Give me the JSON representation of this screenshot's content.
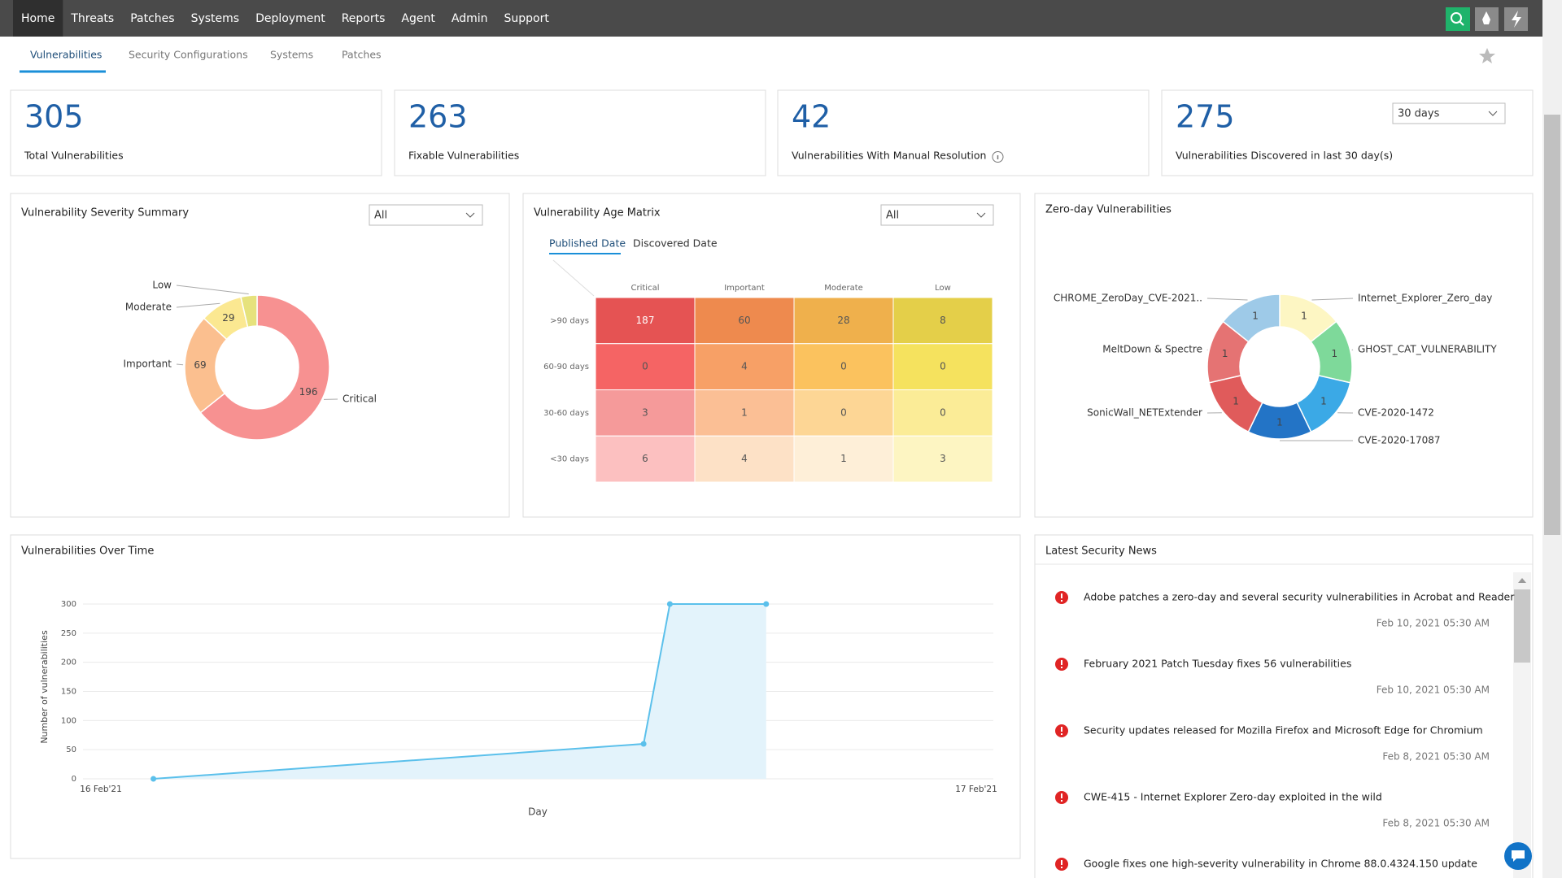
{
  "nav": {
    "items": [
      "Home",
      "Threats",
      "Patches",
      "Systems",
      "Deployment",
      "Reports",
      "Agent",
      "Admin",
      "Support"
    ]
  },
  "tabs": {
    "items": [
      "Vulnerabilities",
      "Security Configurations",
      "Systems",
      "Patches"
    ]
  },
  "stats": [
    {
      "value": 305,
      "label": "Total Vulnerabilities"
    },
    {
      "value": 263,
      "label": "Fixable Vulnerabilities"
    },
    {
      "value": 42,
      "label": "Vulnerabilities With Manual Resolution"
    },
    {
      "value": 275,
      "label": "Vulnerabilities Discovered in last 30 day(s)",
      "filter": "30 days"
    }
  ],
  "chart_data": [
    {
      "type": "donut",
      "title": "Vulnerability Severity Summary",
      "filter": "All",
      "categories": [
        "Critical",
        "Important",
        "Moderate",
        "Low"
      ],
      "values": [
        196,
        69,
        29,
        11
      ],
      "colors": [
        "#f79191",
        "#fbbf8f",
        "#fbe891",
        "#e6e27c"
      ]
    },
    {
      "type": "heatmap",
      "title": "Vulnerability Age Matrix",
      "filter": "All",
      "tabs": [
        "Published Date",
        "Discovered Date"
      ],
      "columns": [
        "Critical",
        "Important",
        "Moderate",
        "Low"
      ],
      "rows": [
        ">90 days",
        "60-90 days",
        "30-60 days",
        "<30 days"
      ],
      "values": [
        [
          187,
          60,
          28,
          8
        ],
        [
          0,
          4,
          0,
          0
        ],
        [
          3,
          1,
          0,
          0
        ],
        [
          6,
          4,
          1,
          3
        ]
      ],
      "colors": [
        [
          "#e55353",
          "#ee8a4e",
          "#efb04c",
          "#e4cf49"
        ],
        [
          "#f56464",
          "#f7a066",
          "#fbc25e",
          "#f5e25e"
        ],
        [
          "#f59a9a",
          "#fbbf95",
          "#fdd695",
          "#fbec97"
        ],
        [
          "#fcc0c0",
          "#fde1c6",
          "#feefd8",
          "#fdf5c2"
        ]
      ]
    },
    {
      "type": "donut",
      "title": "Zero-day Vulnerabilities",
      "categories": [
        "Internet_Explorer_Zero_day",
        "GHOST_CAT_VULNERABILITY",
        "CVE-2020-1472",
        "CVE-2020-17087",
        "SonicWall_NETExtender",
        "MeltDown & Spectre",
        "CHROME_ZeroDay_CVE-2021.."
      ],
      "values": [
        1,
        1,
        1,
        1,
        1,
        1,
        1
      ],
      "colors": [
        "#fdf6c3",
        "#7ed99a",
        "#3ba9e6",
        "#2374c6",
        "#e05b5b",
        "#e57373",
        "#9ecae8"
      ]
    },
    {
      "type": "line",
      "title": "Vulnerabilities Over Time",
      "x": [
        0.06,
        0.62,
        0.65,
        0.76
      ],
      "xlim": [
        0,
        1
      ],
      "xticks": [
        {
          "value": 0,
          "label": "16 Feb'21"
        },
        {
          "value": 1,
          "label": "17 Feb'21"
        }
      ],
      "series": [
        {
          "values": [
            0,
            60,
            300,
            300
          ],
          "color": "#5bc0eb"
        }
      ],
      "ylim": [
        0,
        300
      ],
      "yticks": [
        0,
        50,
        100,
        150,
        200,
        250,
        300
      ],
      "xlabel": "Day",
      "ylabel": "Number of vulnerabilities",
      "grid": true
    }
  ],
  "news": {
    "title": "Latest Security News",
    "items": [
      {
        "title": "Adobe patches a zero-day and several security vulnerabilities in Acrobat and Reader",
        "date": "Feb 10, 2021 05:30 AM"
      },
      {
        "title": "February 2021 Patch Tuesday fixes 56 vulnerabilities",
        "date": "Feb 10, 2021 05:30 AM"
      },
      {
        "title": "Security updates released for Mozilla Firefox and Microsoft Edge for Chromium",
        "date": "Feb 8, 2021 05:30 AM"
      },
      {
        "title": "CWE-415 - Internet Explorer Zero-day exploited in the wild",
        "date": "Feb 8, 2021 05:30 AM"
      },
      {
        "title": "Google fixes one high-severity vulnerability in Chrome 88.0.4324.150 update"
      }
    ]
  }
}
